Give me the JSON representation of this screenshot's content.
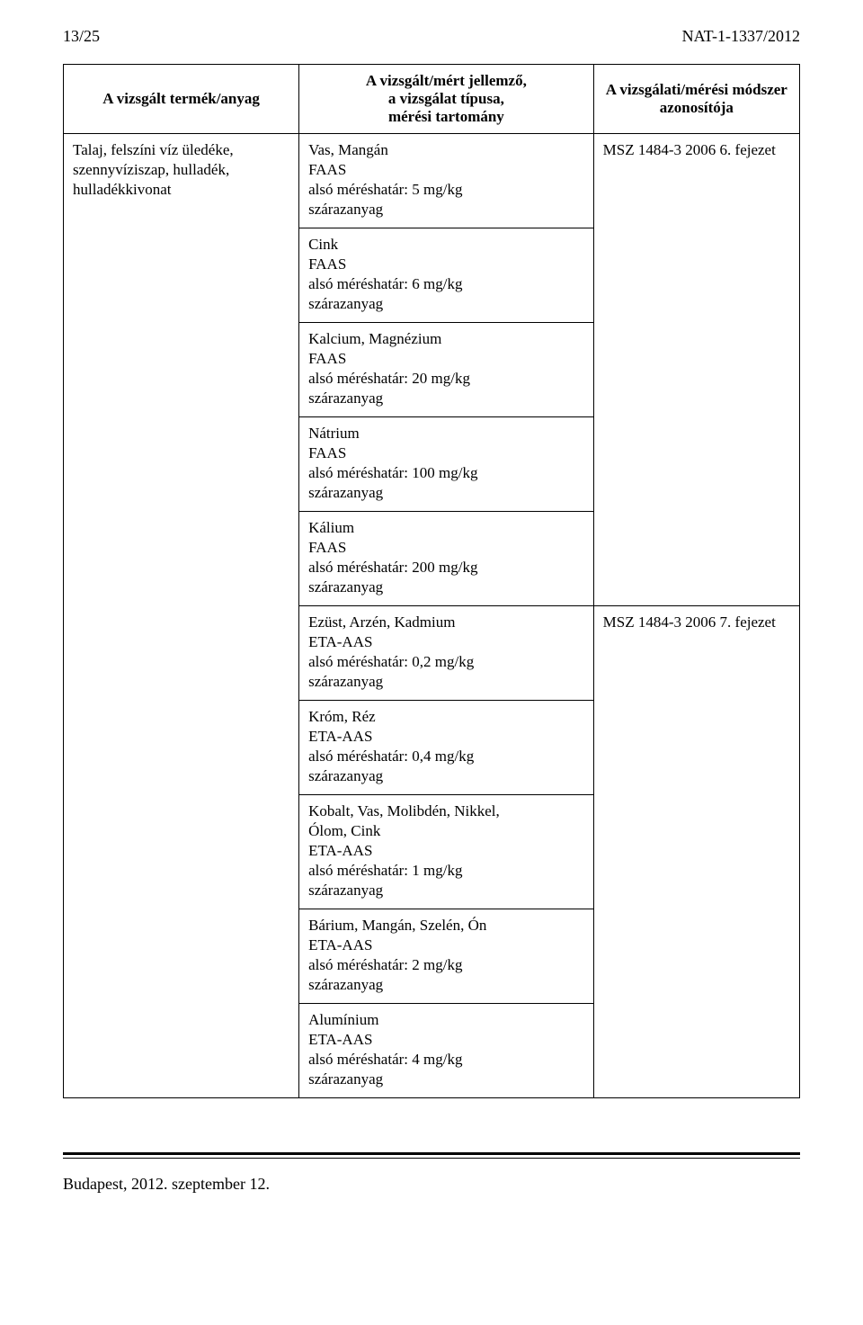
{
  "header": {
    "page_number": "13/25",
    "doc_ref": "NAT-1-1337/2012"
  },
  "table": {
    "columns": {
      "product": "A vizsgált termék/anyag",
      "characteristic_line1": "A vizsgált/mért jellemző,",
      "characteristic_line2": "a vizsgálat típusa,",
      "characteristic_line3": "mérési tartomány",
      "method_line1": "A vizsgálati/mérési módszer",
      "method_line2": "azonosítója"
    },
    "product_cell": {
      "line1": "Talaj, felszíni víz üledéke,",
      "line2": "szennyvíziszap, hulladék,",
      "line3": "hulladékkivonat"
    },
    "group1": {
      "method": "MSZ 1484-3 2006 6. fejezet",
      "cells": [
        [
          "Vas, Mangán",
          "FAAS",
          "alsó méréshatár: 5 mg/kg",
          "szárazanyag"
        ],
        [
          "Cink",
          "FAAS",
          "alsó méréshatár: 6 mg/kg",
          "szárazanyag"
        ],
        [
          "Kalcium, Magnézium",
          "FAAS",
          "alsó méréshatár: 20 mg/kg",
          "szárazanyag"
        ],
        [
          "Nátrium",
          "FAAS",
          "alsó méréshatár: 100 mg/kg",
          "szárazanyag"
        ],
        [
          "Kálium",
          "FAAS",
          "alsó méréshatár: 200 mg/kg",
          "szárazanyag"
        ]
      ]
    },
    "group2": {
      "method": "MSZ 1484-3 2006 7. fejezet",
      "cells": [
        [
          "Ezüst, Arzén, Kadmium",
          "ETA-AAS",
          "alsó méréshatár: 0,2 mg/kg",
          "szárazanyag"
        ],
        [
          "Króm, Réz",
          "ETA-AAS",
          "alsó méréshatár: 0,4 mg/kg",
          "szárazanyag"
        ],
        [
          "Kobalt, Vas, Molibdén, Nikkel,",
          "Ólom, Cink",
          "ETA-AAS",
          "alsó méréshatár: 1 mg/kg",
          "szárazanyag"
        ],
        [
          "Bárium, Mangán, Szelén, Ón",
          "ETA-AAS",
          "alsó méréshatár: 2 mg/kg",
          "szárazanyag"
        ],
        [
          "Alumínium",
          "ETA-AAS",
          "alsó méréshatár: 4 mg/kg",
          "szárazanyag"
        ]
      ]
    }
  },
  "footer": {
    "text": "Budapest, 2012. szeptember 12."
  }
}
